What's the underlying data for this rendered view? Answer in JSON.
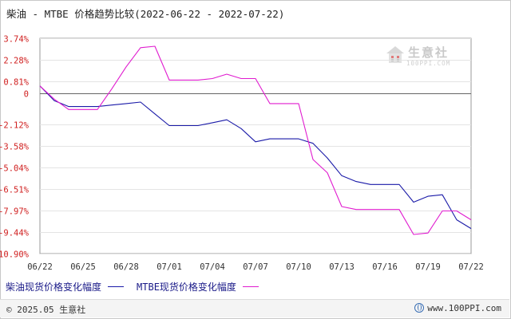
{
  "title": "柴油 - MTBE 价格趋势比较(2022-06-22 - 2022-07-22)",
  "watermark": {
    "text": "生意社",
    "sub": "100PPI.COM"
  },
  "legend": {
    "series1": "柴油现货价格变化幅度",
    "series2": "MTBE现货价格变化幅度",
    "color1": "#1a1aa8",
    "color2": "#e01ccf"
  },
  "footer": {
    "left": "2025.05 生意社",
    "right": "www.100PPI.com"
  },
  "chart_data": {
    "type": "line",
    "title": "柴油 - MTBE 价格趋势比较(2022-06-22 - 2022-07-22)",
    "xlabel": "",
    "ylabel": "",
    "x_ticks": [
      "06/22",
      "06/25",
      "06/28",
      "07/01",
      "07/04",
      "07/07",
      "07/10",
      "07/13",
      "07/16",
      "07/19",
      "07/22"
    ],
    "y_ticks": [
      "3.74%",
      "2.28%",
      "0.81%",
      "0",
      "-2.12%",
      "-3.58%",
      "-5.04%",
      "-6.51%",
      "-7.97%",
      "-9.44%",
      "-10.90%"
    ],
    "y_tick_values": [
      3.74,
      2.28,
      0.81,
      0,
      -2.12,
      -3.58,
      -5.04,
      -6.51,
      -7.97,
      -9.44,
      -10.9
    ],
    "ylim": [
      -10.9,
      3.74
    ],
    "x_dates": [
      "06/22",
      "06/23",
      "06/24",
      "06/25",
      "06/26",
      "06/27",
      "06/28",
      "06/29",
      "06/30",
      "07/01",
      "07/02",
      "07/03",
      "07/04",
      "07/05",
      "07/06",
      "07/07",
      "07/08",
      "07/09",
      "07/10",
      "07/11",
      "07/12",
      "07/13",
      "07/14",
      "07/15",
      "07/16",
      "07/17",
      "07/18",
      "07/19",
      "07/20",
      "07/21",
      "07/22"
    ],
    "series": [
      {
        "name": "柴油现货价格变化幅度",
        "color": "#1a1aa8",
        "values": [
          0.5,
          -0.5,
          -0.9,
          -0.9,
          -0.9,
          -0.8,
          -0.7,
          -0.6,
          -1.4,
          -2.2,
          -2.2,
          -2.2,
          -2.0,
          -1.8,
          -2.4,
          -3.3,
          -3.1,
          -3.1,
          -3.1,
          -3.4,
          -4.4,
          -5.6,
          -6.0,
          -6.2,
          -6.2,
          -6.2,
          -7.4,
          -7.0,
          -6.9,
          -8.6,
          -9.2
        ]
      },
      {
        "name": "MTBE现货价格变化幅度",
        "color": "#e01ccf",
        "values": [
          0.5,
          -0.4,
          -1.1,
          -1.1,
          -1.1,
          0.3,
          1.8,
          3.1,
          3.2,
          0.9,
          0.9,
          0.9,
          1.0,
          1.3,
          1.0,
          1.0,
          -0.7,
          -0.7,
          -0.7,
          -4.5,
          -5.4,
          -7.7,
          -7.9,
          -7.9,
          -7.9,
          -7.9,
          -9.6,
          -9.5,
          -8.0,
          -8.0,
          -8.6
        ]
      }
    ],
    "zero_line": true,
    "grid": "horizontal",
    "legend_position": "bottom-left"
  }
}
